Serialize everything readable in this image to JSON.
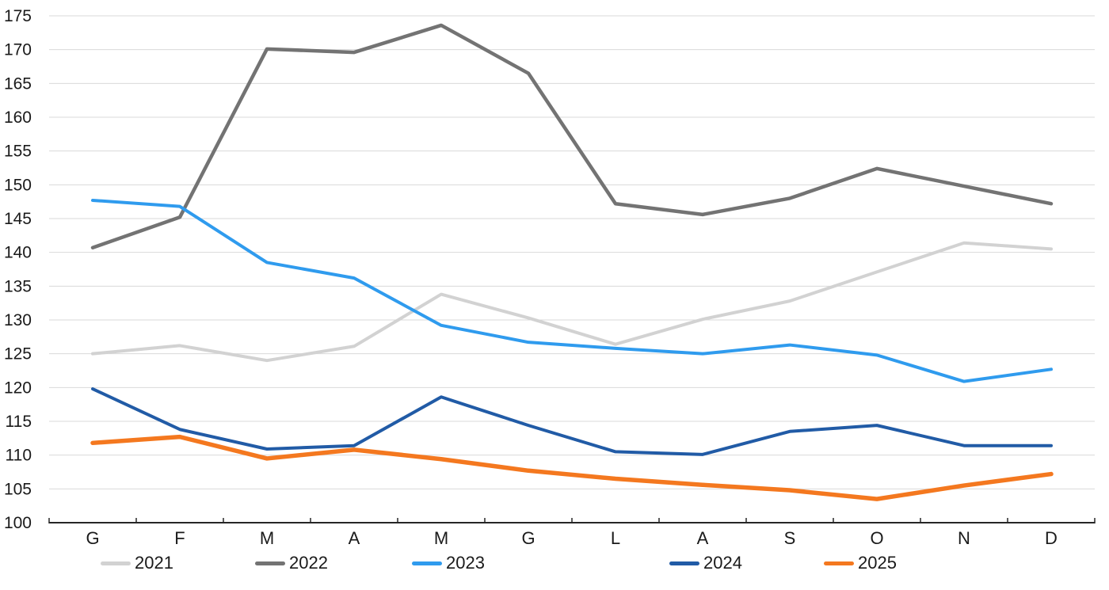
{
  "chart_data": {
    "type": "line",
    "title": "",
    "categories": [
      "G",
      "F",
      "M",
      "A",
      "M",
      "G",
      "L",
      "A",
      "S",
      "O",
      "N",
      "D"
    ],
    "y_axis": {
      "min": 100,
      "max": 175,
      "step": 5
    },
    "ylim": [
      100,
      175
    ],
    "grid": true,
    "legend_position": "bottom",
    "colors": {
      "gridline": "#D9D9D9",
      "axis_line": "#262626",
      "tick_mark": "#262626",
      "axis_label": "#1a1a1a"
    },
    "series": [
      {
        "name": "2021",
        "color": "#D2D2D2",
        "values": [
          125.0,
          126.2,
          124.0,
          126.1,
          133.8,
          130.3,
          126.4,
          130.1,
          132.8,
          137.1,
          141.4,
          140.5
        ]
      },
      {
        "name": "2022",
        "color": "#737373",
        "values": [
          140.7,
          145.2,
          170.1,
          169.6,
          173.6,
          166.5,
          147.2,
          145.6,
          148.0,
          152.4,
          149.8,
          147.2
        ]
      },
      {
        "name": "2023",
        "color": "#2F9BEE",
        "values": [
          147.7,
          146.8,
          138.5,
          136.2,
          129.2,
          126.7,
          125.8,
          125.0,
          126.3,
          124.8,
          120.9,
          122.7
        ]
      },
      {
        "name": "2024",
        "color": "#215BA6",
        "values": [
          119.8,
          113.8,
          110.9,
          111.4,
          118.6,
          114.4,
          110.5,
          110.1,
          113.5,
          114.4,
          111.4,
          111.4
        ]
      },
      {
        "name": "2025",
        "color": "#F4781F",
        "values": [
          111.8,
          112.7,
          109.5,
          110.8,
          109.4,
          107.7,
          106.5,
          105.6,
          104.8,
          103.5,
          105.5,
          107.2
        ]
      }
    ]
  }
}
